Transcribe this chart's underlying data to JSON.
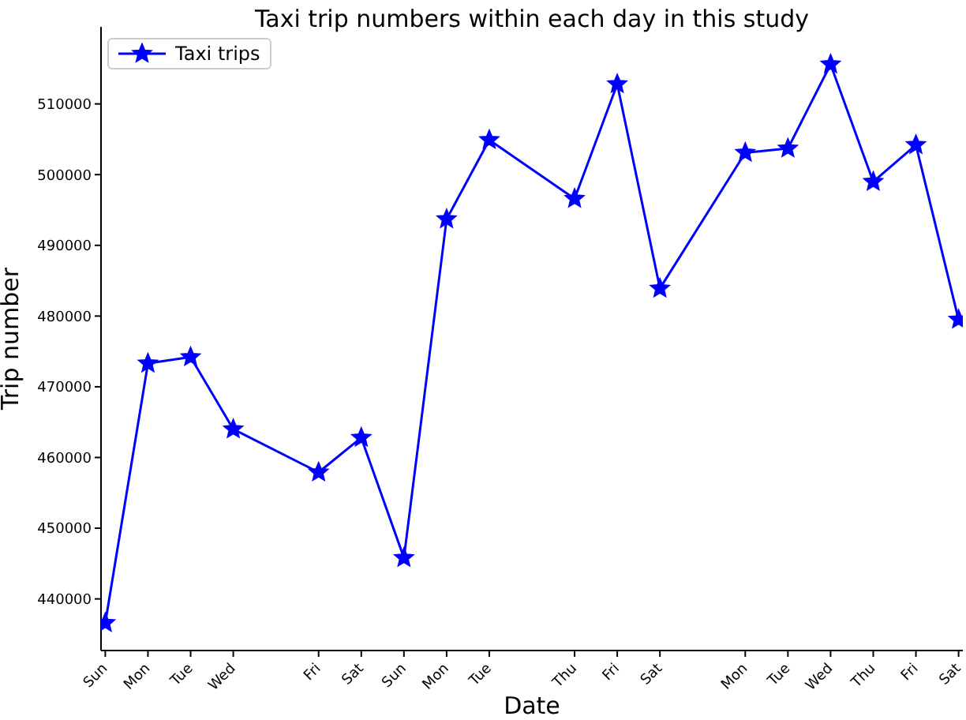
{
  "chart_data": {
    "type": "line",
    "title": "Taxi trip numbers within each day in this study",
    "xlabel": "Date",
    "ylabel": "Trip number",
    "categories": [
      "Sun",
      "Mon",
      "Tue",
      "Wed",
      null,
      "Fri",
      "Sat",
      "Sun",
      "Mon",
      "Tue",
      null,
      "Thu",
      "Fri",
      "Sat",
      null,
      "Mon",
      "Tue",
      "Wed",
      "Thu",
      "Fri",
      "Sat"
    ],
    "series": [
      {
        "name": "Taxi trips",
        "color": "#0000ff",
        "values": [
          436600,
          473300,
          474200,
          464000,
          null,
          457900,
          462800,
          445800,
          493700,
          504900,
          null,
          496600,
          512800,
          483900,
          null,
          503100,
          503700,
          515600,
          499000,
          504200,
          479500
        ]
      }
    ],
    "ylim": [
      432700,
      520900
    ],
    "yticks": [
      440000,
      450000,
      460000,
      470000,
      480000,
      490000,
      500000,
      510000
    ],
    "grid": false,
    "legend": "top left",
    "marker": "star",
    "line_style": "solid"
  }
}
